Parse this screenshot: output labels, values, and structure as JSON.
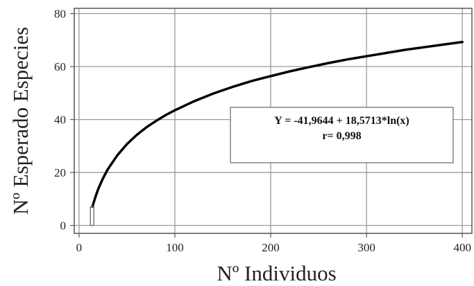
{
  "chart_data": {
    "type": "line",
    "title": "",
    "xlabel": "Nº Individuos",
    "ylabel": "Nº Esperado Especies",
    "xlim": [
      -5,
      410
    ],
    "ylim": [
      -3,
      82
    ],
    "xticks": [
      0,
      100,
      200,
      300,
      400
    ],
    "yticks": [
      0,
      20,
      40,
      60,
      80
    ],
    "grid": true,
    "series": [
      {
        "color": "#000000",
        "x": [
          14,
          17,
          20,
          25,
          30,
          40,
          50,
          60,
          70,
          80,
          90,
          100,
          120,
          140,
          160,
          180,
          200,
          220,
          240,
          260,
          280,
          300,
          320,
          340,
          360,
          380,
          400
        ],
        "y": [
          7.1,
          10.7,
          13.7,
          17.8,
          21.2,
          26.5,
          30.7,
          34.1,
          37.0,
          39.4,
          41.6,
          43.5,
          46.9,
          49.8,
          52.3,
          54.5,
          56.4,
          58.2,
          59.8,
          61.3,
          62.7,
          63.9,
          65.1,
          66.3,
          67.3,
          68.3,
          69.3
        ]
      }
    ],
    "annotation": {
      "line1": "Y = -41,9644 + 18,5713*ln(x)",
      "line2": "r= 0,998"
    }
  }
}
